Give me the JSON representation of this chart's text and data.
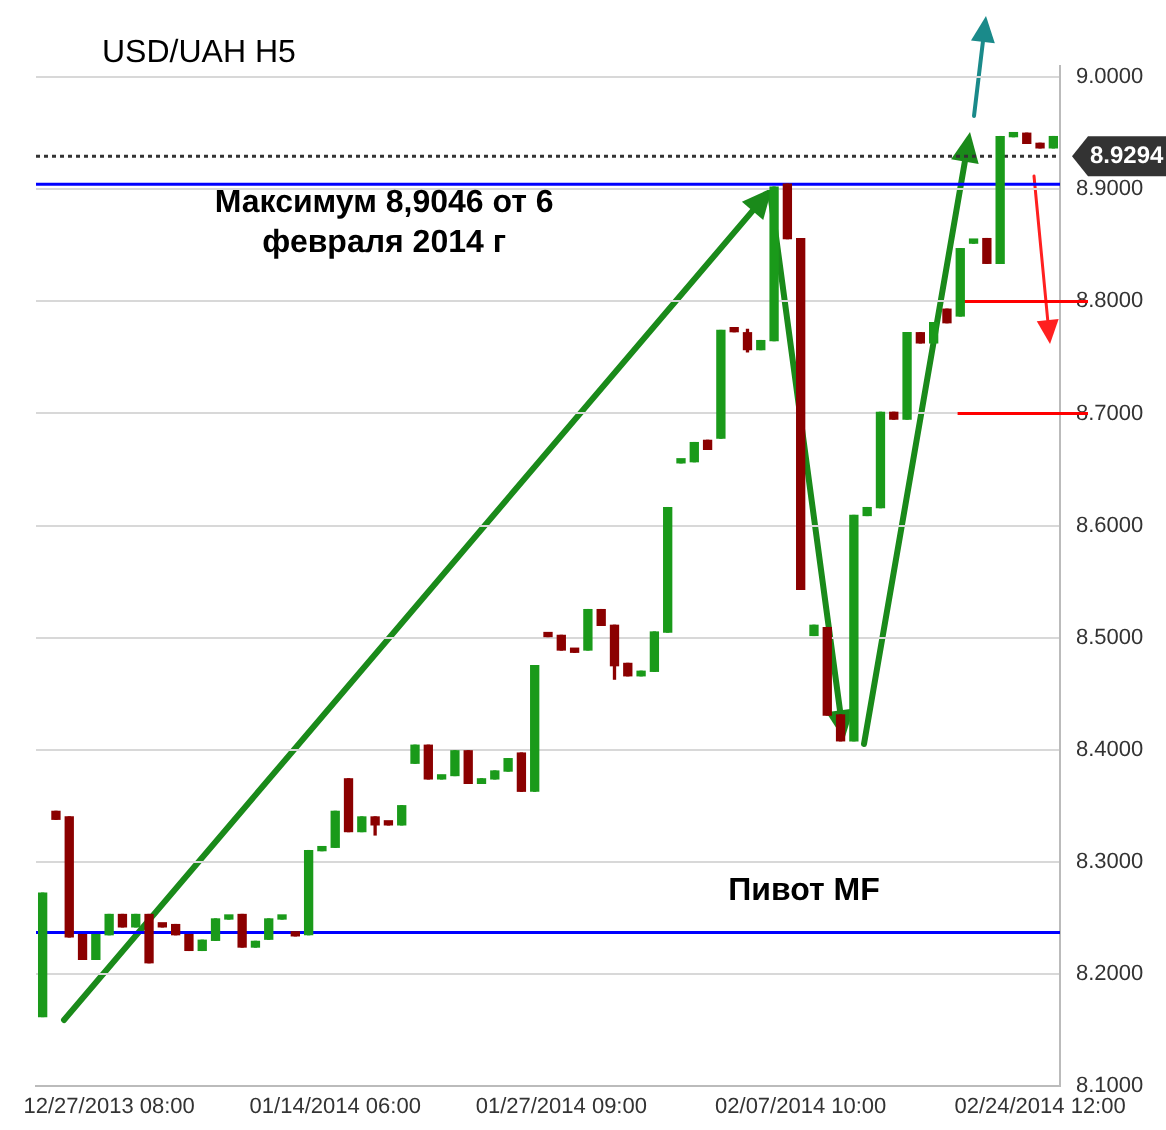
{
  "chart_data": {
    "type": "candlestick",
    "title": "USD/UAH H5",
    "categories": [
      null,
      null,
      null,
      null,
      null,
      "12/27/2013 08:00",
      null,
      null,
      null,
      null,
      null,
      null,
      null,
      null,
      null,
      null,
      null,
      null,
      null,
      null,
      null,
      null,
      "01/14/2014 06:00",
      null,
      null,
      null,
      null,
      null,
      null,
      null,
      null,
      null,
      null,
      null,
      null,
      null,
      null,
      null,
      null,
      "01/27/2014 09:00",
      null,
      null,
      null,
      null,
      null,
      null,
      null,
      null,
      null,
      null,
      null,
      null,
      null,
      null,
      null,
      null,
      null,
      "02/07/2014 10:00",
      null,
      null,
      null,
      null,
      null,
      null,
      null,
      null,
      null,
      null,
      null,
      null,
      null,
      null,
      null,
      null,
      null,
      "02/24/2014 12:00",
      null
    ],
    "ohlc": [
      [
        8.162,
        8.272,
        8.162,
        8.272
      ],
      [
        8.345,
        8.345,
        8.338,
        8.338
      ],
      [
        8.34,
        8.34,
        8.233,
        8.233
      ],
      [
        8.235,
        8.235,
        8.213,
        8.213
      ],
      [
        8.213,
        8.235,
        8.213,
        8.235
      ],
      [
        8.235,
        8.253,
        8.235,
        8.253
      ],
      [
        8.253,
        8.253,
        8.242,
        8.242
      ],
      [
        8.242,
        8.253,
        8.242,
        8.253
      ],
      [
        8.253,
        8.253,
        8.21,
        8.21
      ],
      [
        8.244,
        8.244,
        8.242,
        8.242
      ],
      [
        8.244,
        8.244,
        8.235,
        8.235
      ],
      [
        8.235,
        8.235,
        8.221,
        8.221
      ],
      [
        8.221,
        8.23,
        8.221,
        8.23
      ],
      [
        8.23,
        8.249,
        8.23,
        8.249
      ],
      [
        8.249,
        8.251,
        8.249,
        8.251
      ],
      [
        8.253,
        8.253,
        8.224,
        8.224
      ],
      [
        8.224,
        8.229,
        8.224,
        8.229
      ],
      [
        8.231,
        8.249,
        8.231,
        8.249
      ],
      [
        8.249,
        8.251,
        8.249,
        8.251
      ],
      [
        8.236,
        8.236,
        8.234,
        8.234
      ],
      [
        8.235,
        8.31,
        8.235,
        8.31
      ],
      [
        8.31,
        8.313,
        8.31,
        8.313
      ],
      [
        8.313,
        8.345,
        8.313,
        8.345
      ],
      [
        8.374,
        8.374,
        8.327,
        8.327
      ],
      [
        8.327,
        8.34,
        8.327,
        8.34
      ],
      [
        8.34,
        8.34,
        8.324,
        8.333
      ],
      [
        8.334,
        8.334,
        8.333,
        8.333
      ],
      [
        8.333,
        8.35,
        8.333,
        8.35
      ],
      [
        8.388,
        8.404,
        8.388,
        8.404
      ],
      [
        8.404,
        8.404,
        8.374,
        8.374
      ],
      [
        8.374,
        8.377,
        8.374,
        8.377
      ],
      [
        8.377,
        8.399,
        8.377,
        8.399
      ],
      [
        8.399,
        8.399,
        8.37,
        8.37
      ],
      [
        8.37,
        8.374,
        8.37,
        8.374
      ],
      [
        8.374,
        8.381,
        8.374,
        8.381
      ],
      [
        8.381,
        8.392,
        8.381,
        8.392
      ],
      [
        8.397,
        8.397,
        8.363,
        8.363
      ],
      [
        8.363,
        8.475,
        8.363,
        8.475
      ],
      [
        8.502,
        8.502,
        8.501,
        8.501
      ],
      [
        8.502,
        8.502,
        8.489,
        8.489
      ],
      [
        8.489,
        8.489,
        8.487,
        8.487
      ],
      [
        8.489,
        8.525,
        8.489,
        8.525
      ],
      [
        8.525,
        8.525,
        8.511,
        8.511
      ],
      [
        8.511,
        8.511,
        8.463,
        8.475
      ],
      [
        8.477,
        8.477,
        8.466,
        8.466
      ],
      [
        8.466,
        8.47,
        8.466,
        8.47
      ],
      [
        8.47,
        8.505,
        8.47,
        8.505
      ],
      [
        8.505,
        8.616,
        8.505,
        8.616
      ],
      [
        8.656,
        8.658,
        8.656,
        8.658
      ],
      [
        8.657,
        8.674,
        8.657,
        8.674
      ],
      [
        8.676,
        8.676,
        8.668,
        8.668
      ],
      [
        8.678,
        8.774,
        8.678,
        8.774
      ],
      [
        8.775,
        8.775,
        8.773,
        8.773
      ],
      [
        8.772,
        8.775,
        8.755,
        8.757
      ],
      [
        8.757,
        8.765,
        8.757,
        8.765
      ],
      [
        8.765,
        8.902,
        8.765,
        8.902
      ],
      [
        8.9046,
        8.9046,
        8.856,
        8.856
      ],
      [
        8.856,
        8.856,
        8.543,
        8.543
      ],
      [
        8.502,
        8.511,
        8.502,
        8.511
      ],
      [
        8.509,
        8.509,
        8.431,
        8.431
      ],
      [
        8.431,
        8.431,
        8.408,
        8.408
      ],
      [
        8.408,
        8.609,
        8.408,
        8.609
      ],
      [
        8.609,
        8.616,
        8.609,
        8.616
      ],
      [
        8.616,
        8.701,
        8.616,
        8.701
      ],
      [
        8.701,
        8.701,
        8.695,
        8.695
      ],
      [
        8.695,
        8.772,
        8.695,
        8.772
      ],
      [
        8.772,
        8.772,
        8.763,
        8.763
      ],
      [
        8.763,
        8.781,
        8.763,
        8.781
      ],
      [
        8.793,
        8.793,
        8.781,
        8.781
      ],
      [
        8.787,
        8.847,
        8.787,
        8.847
      ],
      [
        8.852,
        8.854,
        8.852,
        8.854
      ],
      [
        8.856,
        8.856,
        8.834,
        8.834
      ],
      [
        8.834,
        8.947,
        8.834,
        8.947
      ],
      [
        8.947,
        8.949,
        8.947,
        8.949
      ],
      [
        8.95,
        8.95,
        8.941,
        8.941
      ],
      [
        8.941,
        8.941,
        8.937,
        8.937
      ],
      [
        8.937,
        8.947,
        8.937,
        8.947
      ]
    ],
    "colors": [
      "#1a9a1a",
      "#8b0000",
      "#8b0000",
      "#8b0000",
      "#1a9a1a",
      "#1a9a1a",
      "#8b0000",
      "#1a9a1a",
      "#8b0000",
      "#8b0000",
      "#8b0000",
      "#8b0000",
      "#1a9a1a",
      "#1a9a1a",
      "#1a9a1a",
      "#8b0000",
      "#1a9a1a",
      "#1a9a1a",
      "#1a9a1a",
      "#8b0000",
      "#1a9a1a",
      "#1a9a1a",
      "#1a9a1a",
      "#8b0000",
      "#1a9a1a",
      "#8b0000",
      "#8b0000",
      "#1a9a1a",
      "#1a9a1a",
      "#8b0000",
      "#1a9a1a",
      "#1a9a1a",
      "#8b0000",
      "#1a9a1a",
      "#1a9a1a",
      "#1a9a1a",
      "#8b0000",
      "#1a9a1a",
      "#8b0000",
      "#8b0000",
      "#8b0000",
      "#1a9a1a",
      "#8b0000",
      "#8b0000",
      "#8b0000",
      "#1a9a1a",
      "#1a9a1a",
      "#1a9a1a",
      "#1a9a1a",
      "#1a9a1a",
      "#8b0000",
      "#1a9a1a",
      "#8b0000",
      "#8b0000",
      "#1a9a1a",
      "#1a9a1a",
      "#8b0000",
      "#8b0000",
      "#1a9a1a",
      "#8b0000",
      "#8b0000",
      "#1a9a1a",
      "#1a9a1a",
      "#1a9a1a",
      "#8b0000",
      "#1a9a1a",
      "#8b0000",
      "#1a9a1a",
      "#8b0000",
      "#1a9a1a",
      "#1a9a1a",
      "#8b0000",
      "#1a9a1a",
      "#1a9a1a",
      "#8b0000",
      "#8b0000",
      "#1a9a1a"
    ],
    "ylim": [
      8.1,
      9.01
    ],
    "yticks": [
      {
        "value": 8.1,
        "label": "8.1000"
      },
      {
        "value": 8.2,
        "label": "8.2000"
      },
      {
        "value": 8.3,
        "label": "8.3000"
      },
      {
        "value": 8.4,
        "label": "8.4000"
      },
      {
        "value": 8.5,
        "label": "8.5000"
      },
      {
        "value": 8.6,
        "label": "8.6000"
      },
      {
        "value": 8.7,
        "label": "8.7000"
      },
      {
        "value": 8.8,
        "label": "8.8000"
      },
      {
        "value": 8.9,
        "label": "8.9000"
      },
      {
        "value": 9.0,
        "label": "9.0000"
      }
    ],
    "grid": "y",
    "ref_lines": [
      {
        "axis": "y",
        "value": 8.9046,
        "label": "Максимум 8,9046 от 6 февраля 2014 г",
        "color": "#0000ff"
      },
      {
        "axis": "y",
        "value": 8.237,
        "label": "Пивот MF",
        "color": "#0000ff"
      },
      {
        "axis": "y",
        "value": 8.8,
        "color": "#ff0000"
      },
      {
        "axis": "y",
        "value": 8.7,
        "color": "#ff0000"
      },
      {
        "axis": "y",
        "value": 8.9294,
        "label": "8.9294",
        "color": "#333333",
        "line_style": "dotted"
      }
    ]
  }
}
